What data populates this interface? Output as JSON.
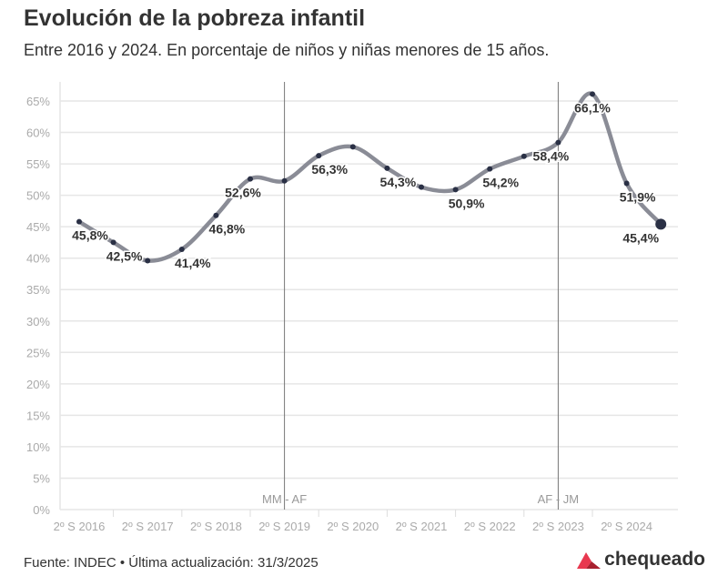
{
  "title": "Evolución de la pobreza infantil",
  "subtitle": "Entre 2016 y 2024. En porcentaje de niños y niñas menores de 15 años.",
  "footer": "Fuente: INDEC • Última actualización: 31/3/2025",
  "brand": "chequeado",
  "colors": {
    "line": "#8a8c96",
    "point": "#2a3045",
    "grid": "#e6e6e6",
    "brand_red": "#e8384f"
  },
  "chart_data": {
    "type": "line",
    "x_tick_labels": [
      "2º S 2016",
      "2º S 2017",
      "2º S 2018",
      "2º S 2019",
      "2º S 2020",
      "2º S 2021",
      "2º S 2022",
      "2º S 2023",
      "2º S 2024"
    ],
    "y_tick_labels": [
      "0%",
      "5%",
      "10%",
      "15%",
      "20%",
      "25%",
      "30%",
      "35%",
      "40%",
      "45%",
      "50%",
      "55%",
      "60%",
      "65%"
    ],
    "ylim": [
      0,
      65
    ],
    "grid": true,
    "values": [
      45.8,
      42.5,
      39.6,
      41.4,
      46.8,
      52.6,
      52.3,
      56.3,
      57.7,
      54.3,
      51.3,
      50.9,
      54.2,
      56.2,
      58.4,
      66.1,
      51.9,
      45.4
    ],
    "data_labels": [
      "45,8%",
      "42,5%",
      null,
      "41,4%",
      "46,8%",
      "52,6%",
      null,
      "56,3%",
      null,
      "54,3%",
      null,
      "50,9%",
      "54,2%",
      null,
      "58,4%",
      "66,1%",
      "51,9%",
      "45,4%"
    ],
    "annotations": [
      {
        "at_index": 6,
        "text": "MM - AF"
      },
      {
        "at_index": 14,
        "text": "AF - JM"
      }
    ]
  }
}
